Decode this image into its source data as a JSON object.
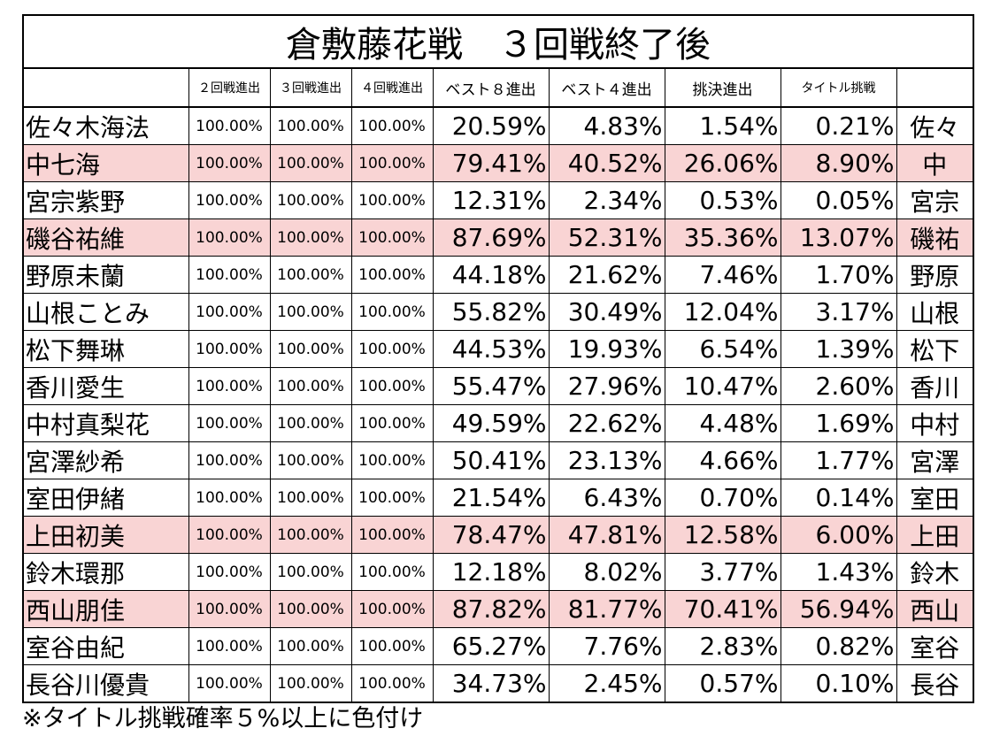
{
  "title": "倉敷藤花戦　３回戦終了後",
  "columns": [
    "２回戦進出",
    "３回戦進出",
    "４回戦進出",
    "ベスト８進出",
    "ベスト４進出",
    "挑決進出",
    "タイトル挑戦"
  ],
  "highlight_color": "#f9d4d4",
  "rows": [
    {
      "name": "佐々木海法",
      "r2": "100.00%",
      "r3": "100.00%",
      "r4": "100.00%",
      "best8": "20.59%",
      "best4": "4.83%",
      "final": "1.54%",
      "title": "0.21%",
      "short": "佐々",
      "highlight": false
    },
    {
      "name": "中七海",
      "r2": "100.00%",
      "r3": "100.00%",
      "r4": "100.00%",
      "best8": "79.41%",
      "best4": "40.52%",
      "final": "26.06%",
      "title": "8.90%",
      "short": "中",
      "highlight": true
    },
    {
      "name": "宮宗紫野",
      "r2": "100.00%",
      "r3": "100.00%",
      "r4": "100.00%",
      "best8": "12.31%",
      "best4": "2.34%",
      "final": "0.53%",
      "title": "0.05%",
      "short": "宮宗",
      "highlight": false
    },
    {
      "name": "磯谷祐維",
      "r2": "100.00%",
      "r3": "100.00%",
      "r4": "100.00%",
      "best8": "87.69%",
      "best4": "52.31%",
      "final": "35.36%",
      "title": "13.07%",
      "short": "磯祐",
      "highlight": true
    },
    {
      "name": "野原未蘭",
      "r2": "100.00%",
      "r3": "100.00%",
      "r4": "100.00%",
      "best8": "44.18%",
      "best4": "21.62%",
      "final": "7.46%",
      "title": "1.70%",
      "short": "野原",
      "highlight": false
    },
    {
      "name": "山根ことみ",
      "r2": "100.00%",
      "r3": "100.00%",
      "r4": "100.00%",
      "best8": "55.82%",
      "best4": "30.49%",
      "final": "12.04%",
      "title": "3.17%",
      "short": "山根",
      "highlight": false
    },
    {
      "name": "松下舞琳",
      "r2": "100.00%",
      "r3": "100.00%",
      "r4": "100.00%",
      "best8": "44.53%",
      "best4": "19.93%",
      "final": "6.54%",
      "title": "1.39%",
      "short": "松下",
      "highlight": false
    },
    {
      "name": "香川愛生",
      "r2": "100.00%",
      "r3": "100.00%",
      "r4": "100.00%",
      "best8": "55.47%",
      "best4": "27.96%",
      "final": "10.47%",
      "title": "2.60%",
      "short": "香川",
      "highlight": false
    },
    {
      "name": "中村真梨花",
      "r2": "100.00%",
      "r3": "100.00%",
      "r4": "100.00%",
      "best8": "49.59%",
      "best4": "22.62%",
      "final": "4.48%",
      "title": "1.69%",
      "short": "中村",
      "highlight": false
    },
    {
      "name": "宮澤紗希",
      "r2": "100.00%",
      "r3": "100.00%",
      "r4": "100.00%",
      "best8": "50.41%",
      "best4": "23.13%",
      "final": "4.66%",
      "title": "1.77%",
      "short": "宮澤",
      "highlight": false
    },
    {
      "name": "室田伊緒",
      "r2": "100.00%",
      "r3": "100.00%",
      "r4": "100.00%",
      "best8": "21.54%",
      "best4": "6.43%",
      "final": "0.70%",
      "title": "0.14%",
      "short": "室田",
      "highlight": false
    },
    {
      "name": "上田初美",
      "r2": "100.00%",
      "r3": "100.00%",
      "r4": "100.00%",
      "best8": "78.47%",
      "best4": "47.81%",
      "final": "12.58%",
      "title": "6.00%",
      "short": "上田",
      "highlight": true
    },
    {
      "name": "鈴木環那",
      "r2": "100.00%",
      "r3": "100.00%",
      "r4": "100.00%",
      "best8": "12.18%",
      "best4": "8.02%",
      "final": "3.77%",
      "title": "1.43%",
      "short": "鈴木",
      "highlight": false
    },
    {
      "name": "西山朋佳",
      "r2": "100.00%",
      "r3": "100.00%",
      "r4": "100.00%",
      "best8": "87.82%",
      "best4": "81.77%",
      "final": "70.41%",
      "title": "56.94%",
      "short": "西山",
      "highlight": true
    },
    {
      "name": "室谷由紀",
      "r2": "100.00%",
      "r3": "100.00%",
      "r4": "100.00%",
      "best8": "65.27%",
      "best4": "7.76%",
      "final": "2.83%",
      "title": "0.82%",
      "short": "室谷",
      "highlight": false
    },
    {
      "name": "長谷川優貴",
      "r2": "100.00%",
      "r3": "100.00%",
      "r4": "100.00%",
      "best8": "34.73%",
      "best4": "2.45%",
      "final": "0.57%",
      "title": "0.10%",
      "short": "長谷",
      "highlight": false
    }
  ],
  "note": "※タイトル挑戦確率５%以上に色付け"
}
